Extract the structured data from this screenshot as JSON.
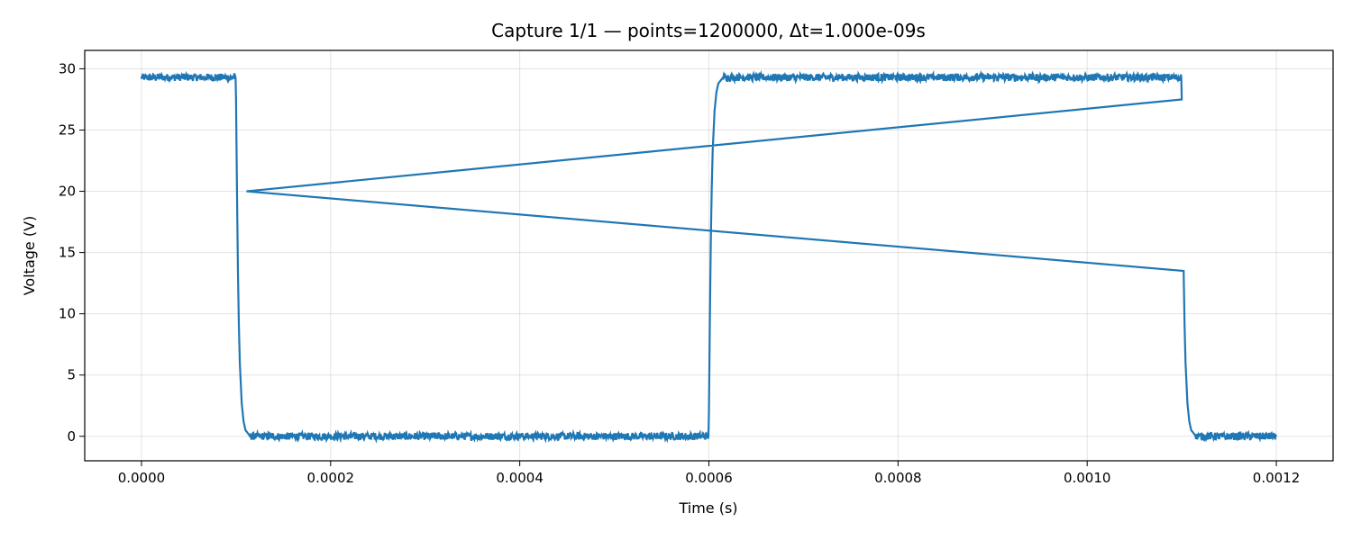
{
  "chart_data": {
    "type": "line",
    "title": "Capture 1/1 — points=1200000, Δt=1.000e-09s",
    "xlabel": "Time (s)",
    "ylabel": "Voltage (V)",
    "xlim": [
      -6e-05,
      0.00126
    ],
    "ylim": [
      -2.0,
      31.5
    ],
    "grid": true,
    "x_ticks": [
      0.0,
      0.0002,
      0.0004,
      0.0006,
      0.0008,
      0.001,
      0.0012
    ],
    "x_tick_labels": [
      "0.0000",
      "0.0002",
      "0.0004",
      "0.0006",
      "0.0008",
      "0.0010",
      "0.0012"
    ],
    "y_ticks": [
      0,
      5,
      10,
      15,
      20,
      25,
      30
    ],
    "y_tick_labels": [
      "0",
      "5",
      "10",
      "15",
      "20",
      "25",
      "30"
    ],
    "series": [
      {
        "color": "#1f77b4",
        "x": [
          0.0,
          9.95e-05,
          0.0001,
          0.000101,
          0.000102,
          0.000103,
          0.000104,
          0.000106,
          0.000108,
          0.00011,
          0.000115,
          0.0002,
          0.0003,
          0.0004,
          0.0005,
          0.0005995,
          0.0006,
          0.000601,
          0.000602,
          0.000603,
          0.000604,
          0.000606,
          0.000608,
          0.00061,
          0.000615,
          0.0007,
          0.0008,
          0.0009,
          0.001,
          0.0010995,
          0.0011,
          0.000111,
          0.001102,
          0.001103,
          0.001104,
          0.001106,
          0.001108,
          0.00111,
          0.001115,
          0.0012
        ],
        "y": [
          29.3,
          29.3,
          27.5,
          20.0,
          13.5,
          9.0,
          6.0,
          2.7,
          1.2,
          0.5,
          0.0,
          0.0,
          0.0,
          0.0,
          0.0,
          0.0,
          1.8,
          9.3,
          15.8,
          20.3,
          23.3,
          26.6,
          28.1,
          28.8,
          29.3,
          29.3,
          29.3,
          29.3,
          29.3,
          29.3,
          27.5,
          20.0,
          13.5,
          9.0,
          6.0,
          2.7,
          1.2,
          0.5,
          0.0,
          0.0
        ]
      }
    ],
    "noise_amplitude": 0.3
  }
}
